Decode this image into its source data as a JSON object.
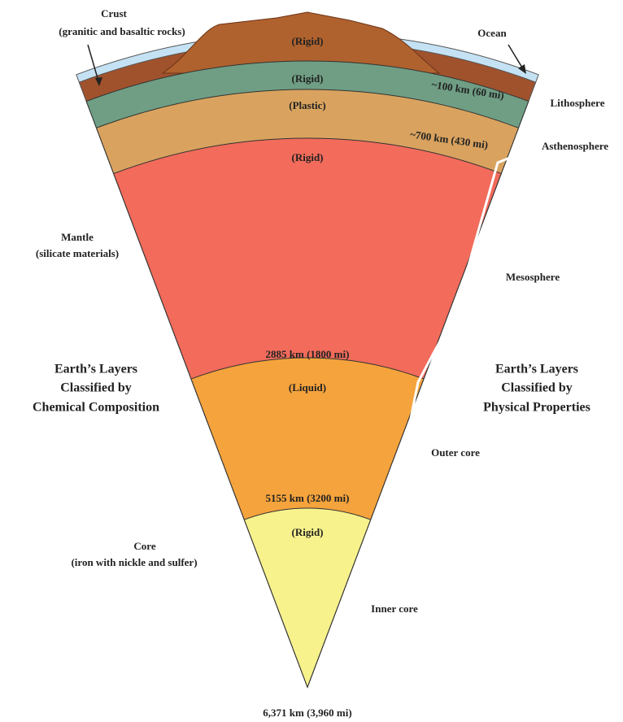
{
  "ocean_label": "Ocean",
  "layer_states": [
    "(Rigid)",
    "(Rigid)",
    "(Plastic)",
    "(Rigid)",
    "(Liquid)",
    "(Rigid)"
  ],
  "depths": [
    "~100 km (60 mi)",
    "~700 km (430 mi)",
    "2885 km (1800 mi)",
    "5155 km (3200 mi)",
    "6,371 km (3,960 mi)"
  ],
  "composition_labels": [
    {
      "lines": [
        "Crust",
        "(granitic and basaltic rocks)"
      ]
    },
    {
      "lines": [
        "Mantle",
        "(silicate materials)"
      ]
    },
    {
      "lines": [
        "Core",
        "(iron with nickle and sulfer)"
      ]
    }
  ],
  "physical_labels": [
    "Lithosphere",
    "Asthenosphere",
    "Mesosphere",
    "Outer core",
    "Inner core"
  ],
  "headings": {
    "chemical": [
      "Earth’s Layers",
      "Classified by",
      "Chemical Composition"
    ],
    "physical": [
      "Earth’s Layers",
      "Classified by",
      "Physical Properties"
    ]
  }
}
